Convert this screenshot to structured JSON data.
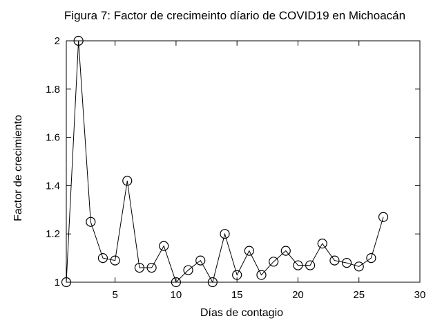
{
  "chart_data": {
    "type": "line",
    "title": "Figura 7: Factor de crecimeinto díario de COVID19 en Michoacán",
    "xlabel": "Días de contagio",
    "ylabel": "Factor de crecimiento",
    "xlim": [
      1,
      30
    ],
    "ylim": [
      1,
      2
    ],
    "xticks": [
      5,
      10,
      15,
      20,
      25,
      30
    ],
    "xtick_labels": [
      "5",
      "10",
      "15",
      "20",
      "25",
      "30"
    ],
    "yticks": [
      1,
      1.2,
      1.4,
      1.6,
      1.8,
      2
    ],
    "ytick_labels": [
      "1",
      "1.2",
      "1.4",
      "1.6",
      "1.8",
      "2"
    ],
    "grid": false,
    "legend": null,
    "marker": "open-circle",
    "marker_radius": 6.5,
    "colors": {
      "line": "#000000",
      "text": "#000000",
      "background": "#ffffff"
    },
    "x": [
      1,
      2,
      3,
      4,
      5,
      6,
      7,
      8,
      9,
      10,
      11,
      12,
      13,
      14,
      15,
      16,
      17,
      18,
      19,
      20,
      21,
      22,
      23,
      24,
      25,
      26,
      27
    ],
    "y": [
      1.0,
      2.0,
      1.25,
      1.1,
      1.09,
      1.42,
      1.06,
      1.06,
      1.15,
      1.0,
      1.05,
      1.09,
      1.0,
      1.2,
      1.03,
      1.13,
      1.03,
      1.085,
      1.13,
      1.07,
      1.07,
      1.16,
      1.09,
      1.08,
      1.065,
      1.1,
      1.27
    ]
  }
}
